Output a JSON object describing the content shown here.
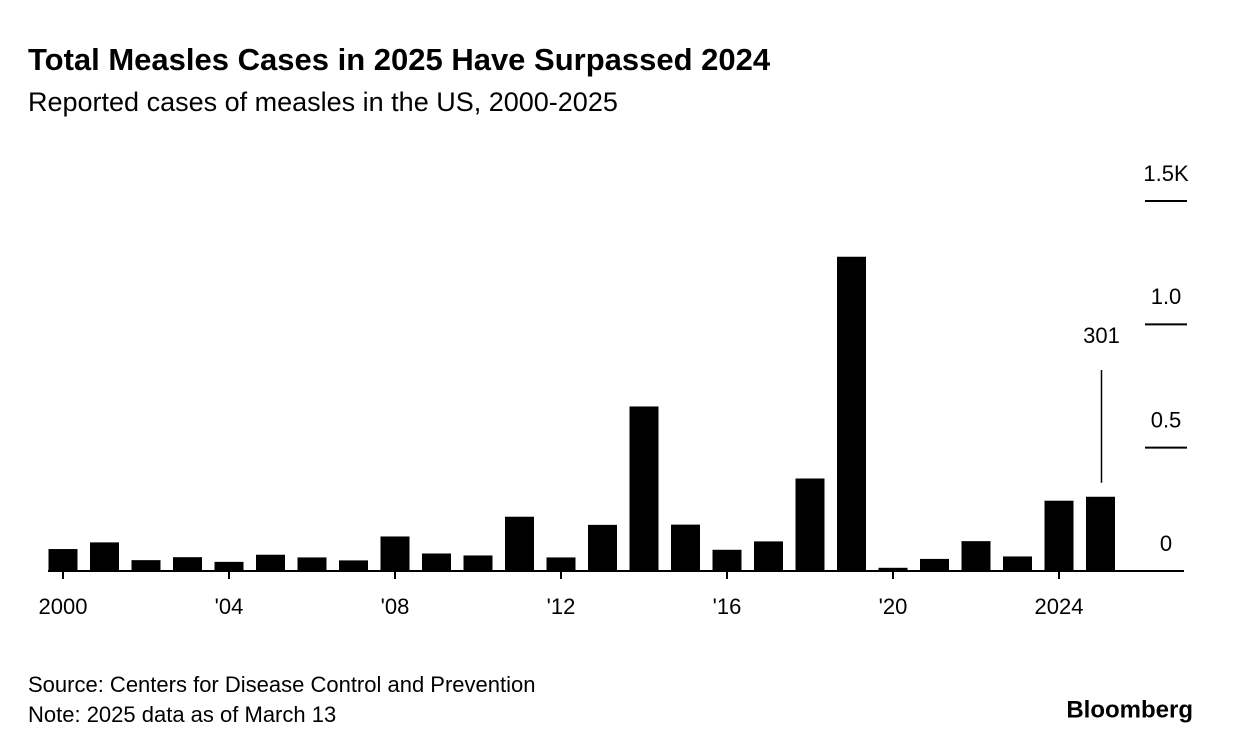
{
  "chart_data": {
    "type": "bar",
    "title": "Total Measles Cases in 2025 Have Surpassed 2024",
    "subtitle": "Reported cases of measles in the US, 2000-2025",
    "categories": [
      "2000",
      null,
      null,
      null,
      "'04",
      null,
      null,
      null,
      "'08",
      null,
      null,
      null,
      "'12",
      null,
      null,
      null,
      "'16",
      null,
      null,
      null,
      "'20",
      null,
      null,
      null,
      "2024",
      null
    ],
    "values": [
      89,
      116,
      44,
      56,
      37,
      66,
      55,
      43,
      140,
      71,
      63,
      220,
      55,
      187,
      667,
      188,
      86,
      120,
      375,
      1274,
      13,
      49,
      121,
      59,
      285,
      301
    ],
    "color": "#000000",
    "ylim": [
      0,
      1500
    ],
    "yticks": [
      0,
      {
        "value": 500,
        "label": "0.5"
      },
      {
        "value": 1000,
        "label": "1.0"
      },
      {
        "value": 1500,
        "label": "1.5K"
      }
    ],
    "source": "Source: Centers for Disease Control and Prevention",
    "note": "Note: 2025 data as of March 13",
    "brand": "Bloomberg"
  }
}
